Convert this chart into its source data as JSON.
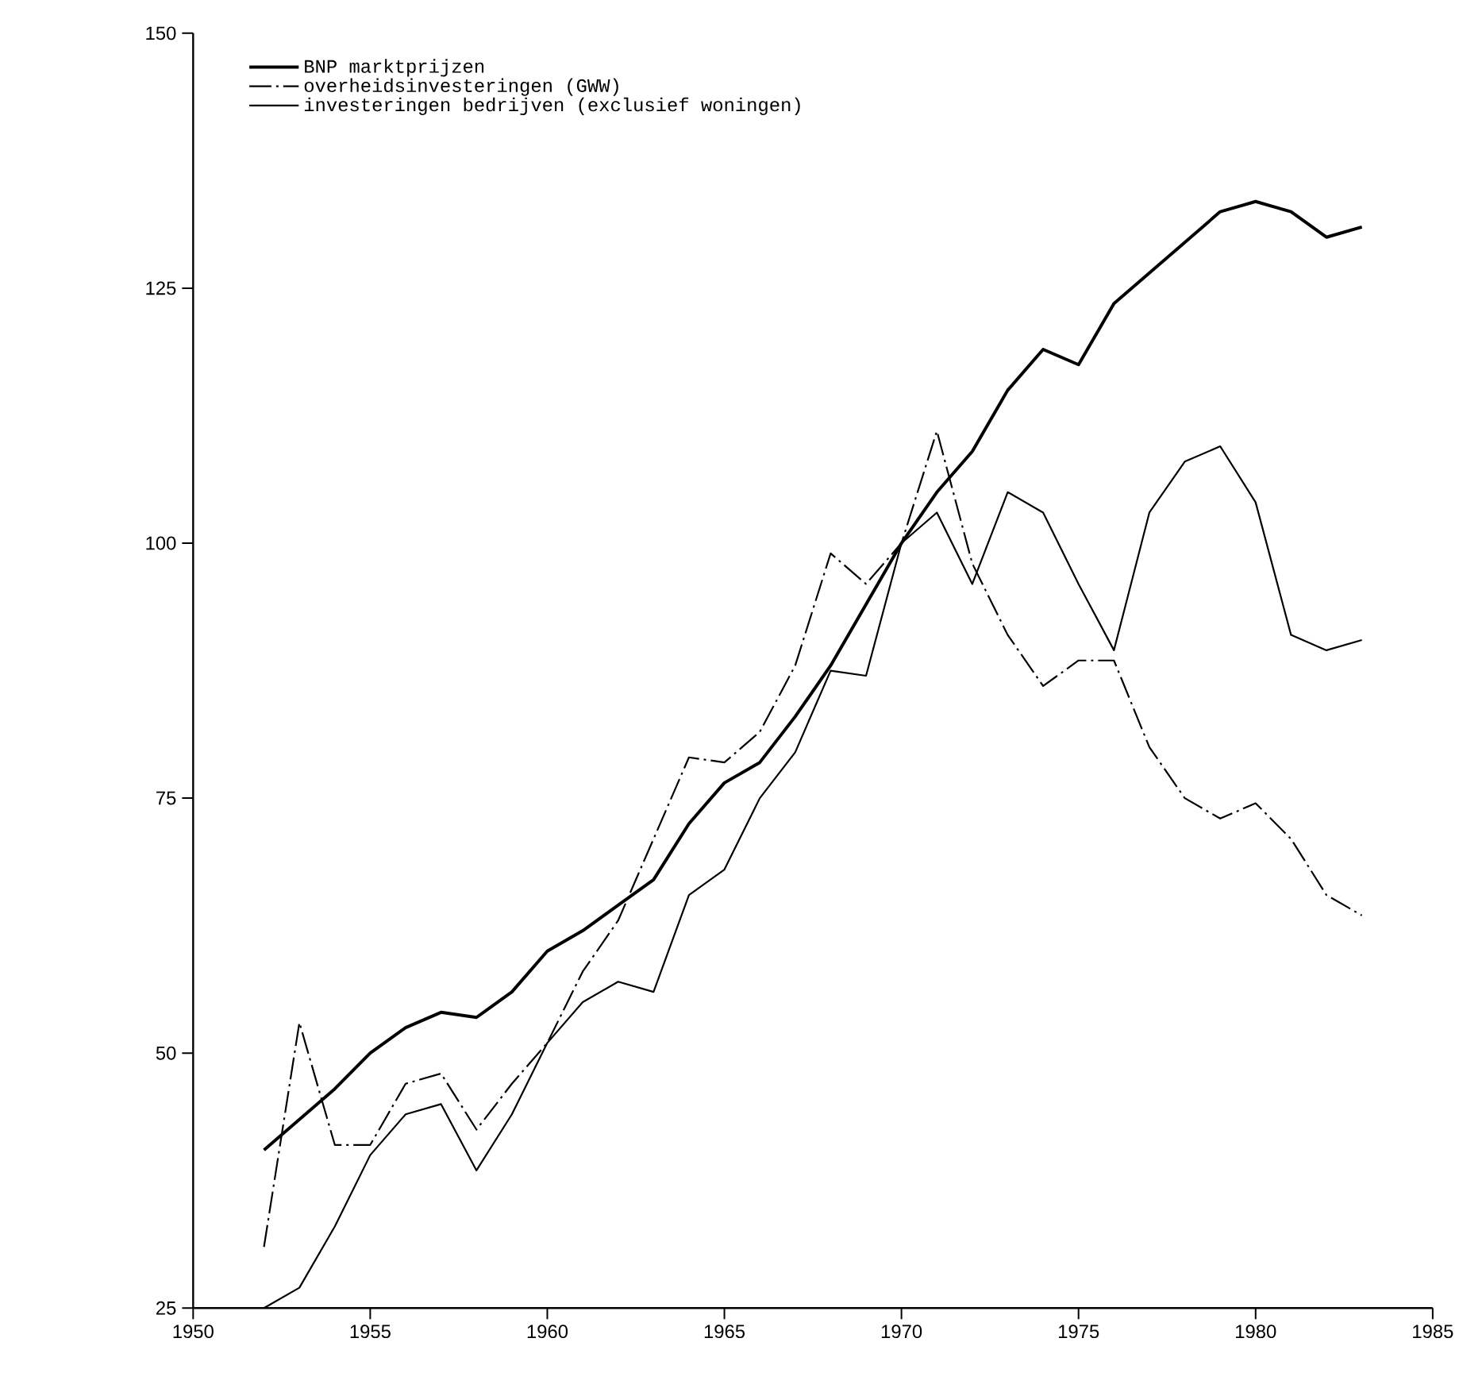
{
  "chart_data": {
    "type": "line",
    "legend": "top left",
    "marker": "none",
    "grid": false,
    "x": [
      1952,
      1953,
      1954,
      1955,
      1956,
      1957,
      1958,
      1959,
      1960,
      1961,
      1962,
      1963,
      1964,
      1965,
      1966,
      1967,
      1968,
      1969,
      1970,
      1971,
      1972,
      1973,
      1974,
      1975,
      1976,
      1977,
      1978,
      1979,
      1980,
      1981,
      1982,
      1983
    ],
    "xlim": [
      1950,
      1985
    ],
    "xticks": [
      1950,
      1955,
      1960,
      1965,
      1970,
      1975,
      1980,
      1985
    ],
    "ylim": [
      25,
      150
    ],
    "yticks": [
      25,
      50,
      75,
      100,
      125,
      150
    ],
    "series": [
      {
        "name": "BNP marktprijzen",
        "color": "#000000",
        "line_style": "solid",
        "values": [
          40.5,
          43.5,
          46.5,
          50,
          52.5,
          54,
          53.5,
          56,
          60,
          62,
          64.5,
          67,
          72.5,
          76.5,
          78.5,
          83,
          88,
          94,
          100,
          105,
          109,
          115,
          119,
          117.5,
          123.5,
          126.5,
          129.5,
          132.5,
          133.5,
          132.5,
          130,
          131
        ]
      },
      {
        "name": "overheidsinvesteringen (GWW)",
        "color": "#000000",
        "line_style": "dashdot",
        "values": [
          31,
          53,
          41,
          41,
          47,
          48,
          42.5,
          47,
          51,
          58,
          63,
          71,
          79,
          78.5,
          81.5,
          88,
          99,
          96,
          100,
          111,
          98,
          91,
          86,
          88.5,
          88.5,
          80,
          75,
          73,
          74.5,
          71,
          65.5,
          63.5
        ]
      },
      {
        "name": "investeringen bedrijven (exclusief woningen)",
        "color": "#000000",
        "line_style": "solid",
        "values": [
          25,
          27,
          33,
          40,
          44,
          45,
          38.5,
          44,
          51,
          55,
          57,
          56,
          65.5,
          68,
          75,
          79.5,
          87.5,
          87,
          100,
          103,
          96,
          105,
          103,
          96,
          89.5,
          103,
          108,
          109.5,
          104,
          91,
          89.5,
          90.5
        ]
      }
    ]
  }
}
